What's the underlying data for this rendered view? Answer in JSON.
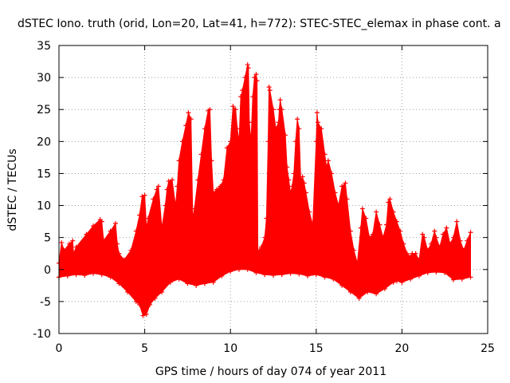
{
  "chart_data": {
    "type": "area",
    "title": "dSTEC Iono. truth (orid, Lon=20, Lat=41, h=772): STEC-STEC_elemax in phase cont. a",
    "xlabel": "GPS time / hours of day 074 of year 2011",
    "ylabel": "dSTEC  / TECUs",
    "xlim": [
      0,
      25
    ],
    "ylim": [
      -10,
      35
    ],
    "xticks": [
      "0",
      "5",
      "10",
      "15",
      "20",
      "25"
    ],
    "yticks": [
      "-10",
      "-5",
      "0",
      "5",
      "10",
      "15",
      "20",
      "25",
      "30",
      "35"
    ],
    "grid": true,
    "color": "#ff0000",
    "marker": "plus",
    "upper_envelope": {
      "x": [
        0.0,
        0.15,
        0.3,
        0.6,
        0.8,
        0.85,
        1.0,
        1.6,
        2.0,
        2.4,
        2.5,
        2.6,
        3.0,
        3.3,
        3.4,
        3.5,
        3.8,
        4.2,
        4.5,
        4.7,
        4.85,
        5.0,
        5.1,
        5.2,
        5.5,
        5.7,
        5.8,
        6.0,
        6.2,
        6.3,
        6.4,
        6.6,
        6.8,
        6.9,
        7.0,
        7.2,
        7.4,
        7.55,
        7.7,
        7.8,
        7.9,
        8.1,
        8.3,
        8.5,
        8.7,
        8.8,
        8.9,
        9.0,
        9.2,
        9.4,
        9.6,
        9.8,
        10.0,
        10.15,
        10.3,
        10.4,
        10.5,
        10.6,
        10.7,
        10.85,
        11.0,
        11.05,
        11.1,
        11.2,
        11.3,
        11.4,
        11.5,
        11.55,
        11.6,
        11.7,
        11.8,
        12.0,
        12.1,
        12.2,
        12.25,
        12.3,
        12.5,
        12.65,
        12.8,
        12.85,
        12.9,
        13.0,
        13.2,
        13.3,
        13.4,
        13.5,
        13.6,
        13.7,
        13.8,
        13.9,
        14.0,
        14.1,
        14.2,
        14.3,
        14.4,
        14.6,
        14.8,
        15.0,
        15.05,
        15.1,
        15.3,
        15.5,
        15.6,
        15.7,
        15.9,
        16.1,
        16.3,
        16.5,
        16.7,
        16.8,
        17.0,
        17.2,
        17.4,
        17.6,
        17.7,
        17.9,
        18.1,
        18.3,
        18.5,
        18.7,
        18.9,
        19.1,
        19.2,
        19.3,
        19.5,
        19.7,
        19.9,
        20.1,
        20.3,
        20.5,
        20.6,
        20.8,
        21.0,
        21.2,
        21.3,
        21.5,
        21.7,
        21.9,
        22.0,
        22.2,
        22.4,
        22.6,
        22.8,
        23.0,
        23.2,
        23.4,
        23.6,
        23.8,
        24.0
      ],
      "y": [
        1.0,
        4.2,
        3.0,
        4.0,
        4.5,
        2.5,
        3.5,
        5.5,
        6.8,
        7.8,
        7.5,
        4.5,
        6.0,
        7.2,
        4.0,
        2.5,
        1.5,
        3.0,
        6.0,
        8.5,
        11.4,
        11.6,
        6.5,
        8.0,
        11.0,
        12.5,
        13.0,
        6.5,
        10.0,
        12.5,
        13.8,
        14.0,
        10.0,
        13.0,
        17.0,
        20.0,
        22.5,
        24.5,
        23.5,
        8.0,
        9.5,
        14.0,
        18.0,
        22.0,
        24.8,
        25.0,
        17.0,
        12.0,
        12.5,
        13.0,
        14.0,
        19.0,
        20.0,
        25.5,
        25.0,
        22.0,
        20.0,
        27.0,
        28.0,
        30.0,
        32.0,
        31.5,
        23.0,
        20.0,
        27.0,
        30.0,
        30.5,
        29.5,
        3.0,
        3.0,
        3.5,
        5.0,
        8.0,
        20.0,
        28.5,
        28.0,
        25.0,
        22.0,
        23.0,
        25.0,
        26.5,
        25.0,
        21.0,
        16.0,
        14.0,
        12.0,
        13.0,
        15.0,
        20.0,
        23.5,
        22.0,
        14.0,
        14.5,
        13.5,
        12.0,
        9.0,
        7.0,
        20.0,
        24.5,
        23.0,
        22.0,
        18.0,
        16.0,
        17.0,
        15.0,
        12.0,
        10.0,
        13.0,
        13.5,
        11.0,
        6.0,
        3.0,
        1.0,
        6.5,
        9.5,
        8.0,
        5.0,
        5.5,
        9.0,
        7.0,
        5.0,
        7.0,
        10.5,
        11.0,
        9.0,
        7.5,
        6.0,
        4.0,
        2.5,
        2.0,
        2.5,
        2.5,
        1.5,
        5.5,
        5.0,
        3.0,
        4.0,
        6.0,
        5.0,
        3.5,
        5.5,
        6.5,
        4.0,
        5.0,
        7.5,
        4.5,
        3.0,
        4.5,
        5.8
      ]
    },
    "lower_envelope": {
      "x": [
        0.0,
        0.5,
        1.0,
        1.5,
        2.0,
        2.5,
        3.0,
        3.5,
        4.0,
        4.5,
        4.7,
        4.9,
        5.1,
        5.3,
        5.6,
        6.0,
        6.5,
        7.0,
        7.5,
        8.0,
        8.5,
        9.0,
        9.5,
        10.0,
        10.5,
        11.0,
        11.5,
        12.0,
        12.5,
        13.0,
        13.5,
        14.0,
        14.5,
        15.0,
        15.5,
        16.0,
        16.5,
        17.0,
        17.5,
        18.0,
        18.5,
        19.0,
        19.5,
        19.7,
        20.0,
        20.5,
        21.0,
        21.5,
        22.0,
        22.5,
        23.0,
        23.5,
        24.0
      ],
      "y": [
        -1.2,
        -1.0,
        -0.8,
        -0.9,
        -0.6,
        -0.8,
        -1.2,
        -2.2,
        -3.5,
        -5.0,
        -5.5,
        -7.2,
        -7.0,
        -5.5,
        -4.5,
        -3.5,
        -2.0,
        -1.5,
        -2.2,
        -2.5,
        -2.2,
        -2.0,
        -1.0,
        -0.3,
        0.0,
        0.0,
        -0.5,
        -0.8,
        -0.9,
        -0.8,
        -0.6,
        -0.7,
        -1.0,
        -0.8,
        -1.2,
        -1.5,
        -2.5,
        -3.5,
        -4.5,
        -3.5,
        -3.8,
        -3.0,
        -2.0,
        -1.8,
        -2.0,
        -1.5,
        -1.0,
        -0.5,
        -0.4,
        -0.5,
        -1.6,
        -1.5,
        -1.2
      ]
    }
  }
}
